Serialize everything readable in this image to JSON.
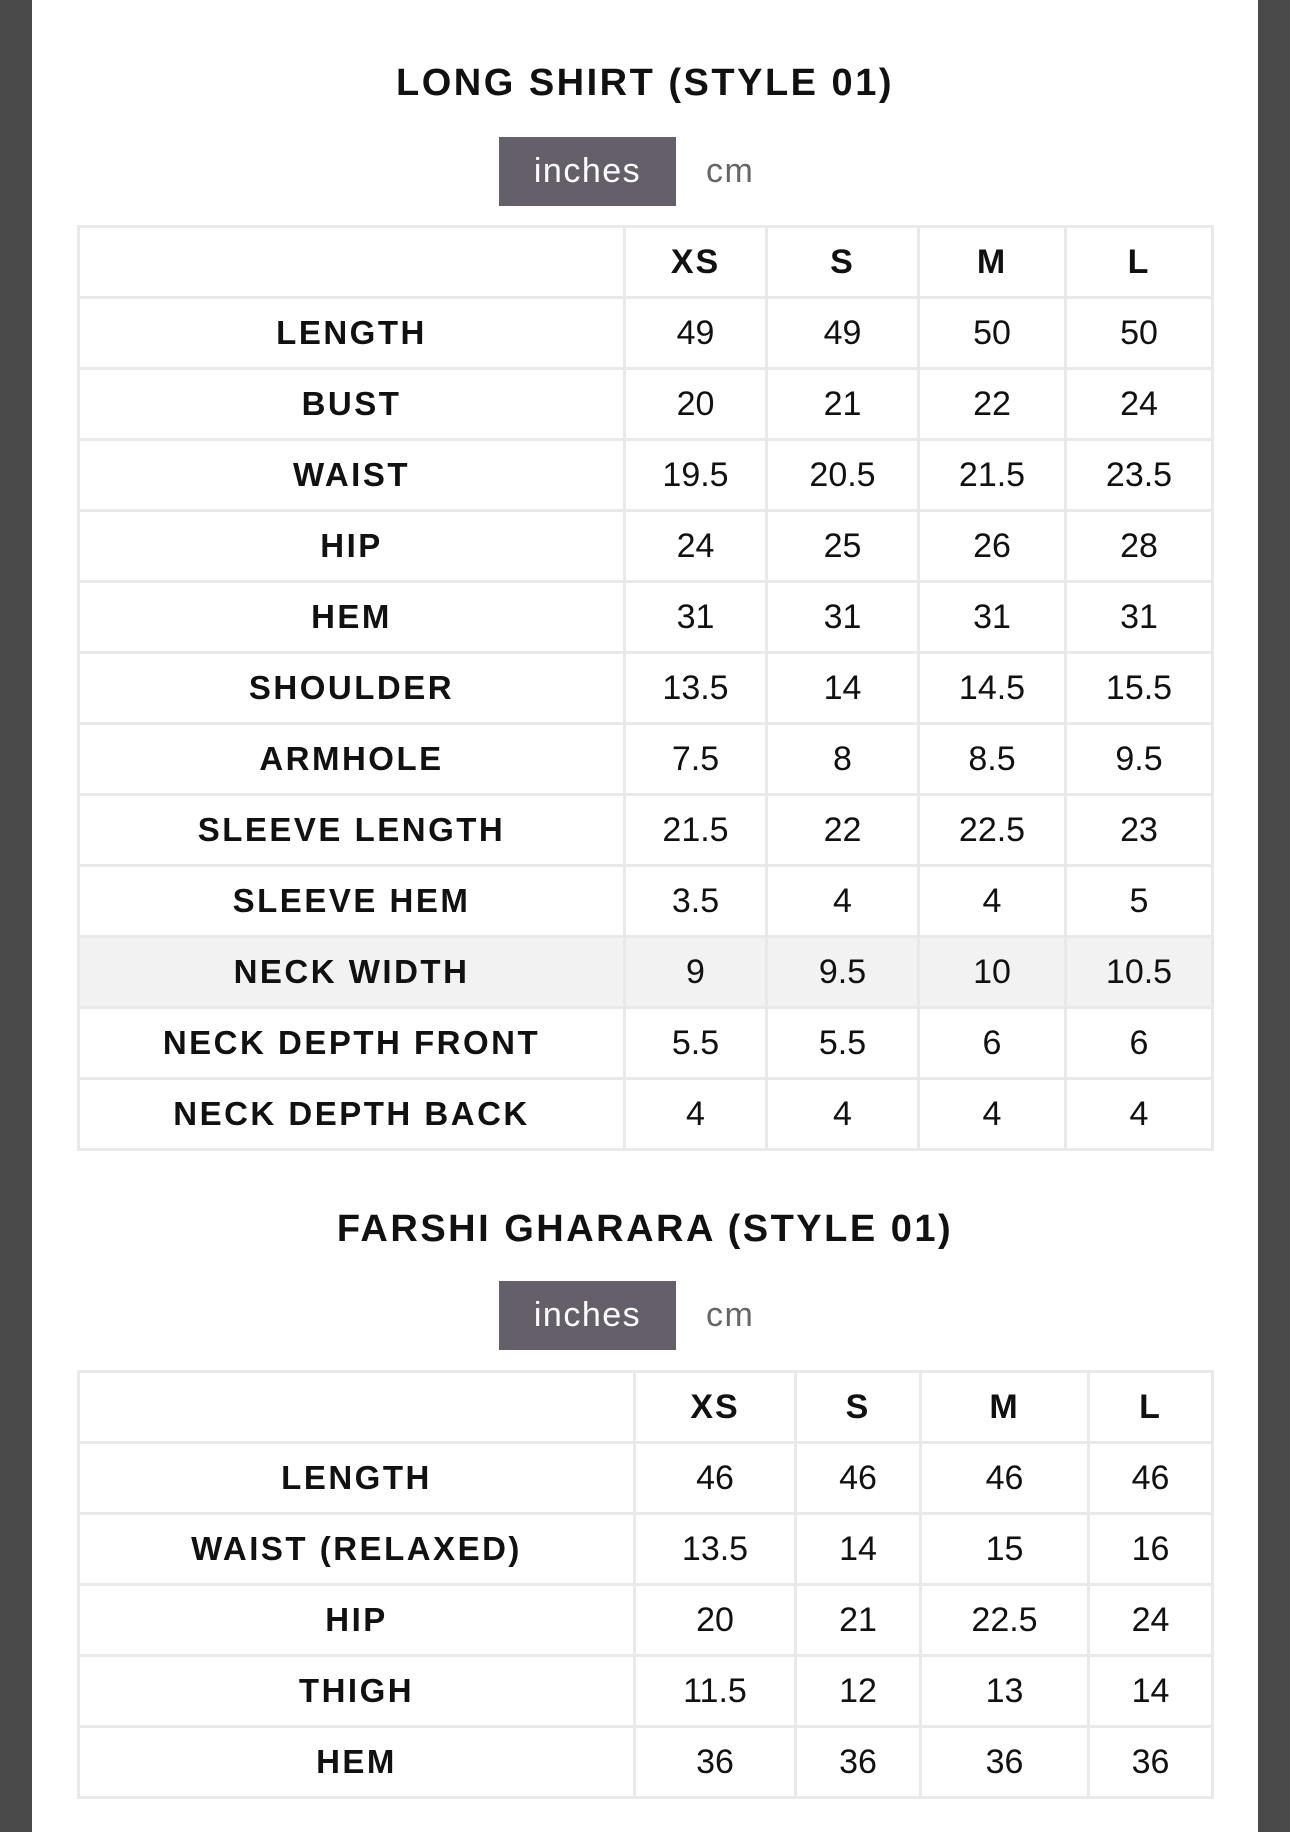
{
  "sections": [
    {
      "title": "LONG SHIRT (STYLE 01)",
      "units": {
        "active": "inches",
        "other": "cm"
      },
      "columns": [
        "",
        "XS",
        "S",
        "M",
        "L"
      ],
      "highlighted_row": "NECK WIDTH",
      "rows": [
        {
          "label": "LENGTH",
          "values": [
            "49",
            "49",
            "50",
            "50"
          ]
        },
        {
          "label": "BUST",
          "values": [
            "20",
            "21",
            "22",
            "24"
          ]
        },
        {
          "label": "WAIST",
          "values": [
            "19.5",
            "20.5",
            "21.5",
            "23.5"
          ]
        },
        {
          "label": "HIP",
          "values": [
            "24",
            "25",
            "26",
            "28"
          ]
        },
        {
          "label": "HEM",
          "values": [
            "31",
            "31",
            "31",
            "31"
          ]
        },
        {
          "label": "SHOULDER",
          "values": [
            "13.5",
            "14",
            "14.5",
            "15.5"
          ]
        },
        {
          "label": "ARMHOLE",
          "values": [
            "7.5",
            "8",
            "8.5",
            "9.5"
          ]
        },
        {
          "label": "SLEEVE LENGTH",
          "values": [
            "21.5",
            "22",
            "22.5",
            "23"
          ]
        },
        {
          "label": "SLEEVE HEM",
          "values": [
            "3.5",
            "4",
            "4",
            "5"
          ]
        },
        {
          "label": "NECK WIDTH",
          "values": [
            "9",
            "9.5",
            "10",
            "10.5"
          ]
        },
        {
          "label": "NECK DEPTH FRONT",
          "values": [
            "5.5",
            "5.5",
            "6",
            "6"
          ]
        },
        {
          "label": "NECK DEPTH BACK",
          "values": [
            "4",
            "4",
            "4",
            "4"
          ]
        }
      ]
    },
    {
      "title": "FARSHI GHARARA (STYLE 01)",
      "units": {
        "active": "inches",
        "other": "cm"
      },
      "columns": [
        "",
        "XS",
        "S",
        "M",
        "L"
      ],
      "rows": [
        {
          "label": "LENGTH",
          "values": [
            "46",
            "46",
            "46",
            "46"
          ]
        },
        {
          "label": "WAIST (RELAXED)",
          "values": [
            "13.5",
            "14",
            "15",
            "16"
          ]
        },
        {
          "label": "HIP",
          "values": [
            "20",
            "21",
            "22.5",
            "24"
          ]
        },
        {
          "label": "THIGH",
          "values": [
            "11.5",
            "12",
            "13",
            "14"
          ]
        },
        {
          "label": "HEM",
          "values": [
            "36",
            "36",
            "36",
            "36"
          ]
        }
      ]
    }
  ],
  "colors": {
    "toggle_active_bg": "#655f69",
    "frame": "#4a4a4a",
    "grid": "#e9e9e9",
    "highlight_row": "#f2f2f2"
  }
}
